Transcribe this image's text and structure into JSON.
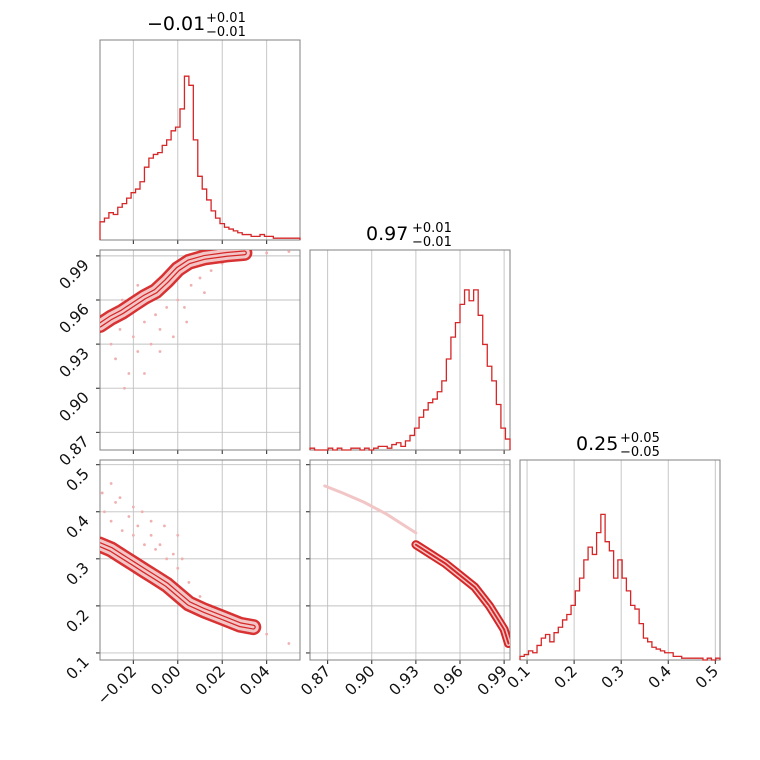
{
  "colors": {
    "accent": "#d62728",
    "fill": "#f6c4c4",
    "scatter": "#f0b0b0",
    "grid": "#c0c0c0",
    "frame": "#808080"
  },
  "chart_data": {
    "type": "corner",
    "params": [
      {
        "median": "−0.01",
        "plus": "+0.01",
        "minus": "−0.01",
        "range": [
          -0.035,
          0.055
        ],
        "ticks": [
          -0.02,
          0.0,
          0.02,
          0.04
        ],
        "tick_labels": [
          "−0.02",
          "0.00",
          "0.02",
          "0.04"
        ]
      },
      {
        "median": "0.97",
        "plus": "+0.01",
        "minus": "−0.01",
        "range": [
          0.858,
          0.994
        ],
        "ticks": [
          0.87,
          0.9,
          0.93,
          0.96,
          0.99
        ],
        "tick_labels": [
          "0.87",
          "0.90",
          "0.93",
          "0.96",
          "0.99"
        ]
      },
      {
        "median": "0.25",
        "plus": "+0.05",
        "minus": "−0.05",
        "range": [
          0.085,
          0.51
        ],
        "ticks": [
          0.1,
          0.2,
          0.3,
          0.4,
          0.5
        ],
        "tick_labels": [
          "0.1",
          "0.2",
          "0.3",
          "0.4",
          "0.5"
        ]
      }
    ],
    "histograms": [
      {
        "param": 0,
        "counts": [
          0.1,
          0.12,
          0.15,
          0.14,
          0.18,
          0.2,
          0.23,
          0.26,
          0.28,
          0.32,
          0.4,
          0.45,
          0.47,
          0.48,
          0.52,
          0.55,
          0.6,
          0.62,
          0.72,
          0.9,
          0.85,
          0.55,
          0.35,
          0.28,
          0.22,
          0.16,
          0.12,
          0.09,
          0.07,
          0.06,
          0.05,
          0.04,
          0.03,
          0.03,
          0.02,
          0.02,
          0.03,
          0.02,
          0.02,
          0.01,
          0.01,
          0.01,
          0.01,
          0.01,
          0.01
        ]
      },
      {
        "param": 1,
        "counts": [
          0.01,
          0.0,
          0.0,
          0.0,
          0.01,
          0.0,
          0.01,
          0.0,
          0.0,
          0.01,
          0.01,
          0.0,
          0.01,
          0.0,
          0.01,
          0.02,
          0.02,
          0.01,
          0.03,
          0.04,
          0.02,
          0.05,
          0.08,
          0.12,
          0.18,
          0.22,
          0.26,
          0.28,
          0.32,
          0.38,
          0.5,
          0.62,
          0.7,
          0.8,
          0.88,
          0.82,
          0.88,
          0.74,
          0.58,
          0.46,
          0.38,
          0.25,
          0.12,
          0.06
        ]
      },
      {
        "param": 2,
        "counts": [
          0.02,
          0.03,
          0.05,
          0.04,
          0.08,
          0.12,
          0.14,
          0.1,
          0.15,
          0.18,
          0.22,
          0.25,
          0.3,
          0.38,
          0.45,
          0.55,
          0.62,
          0.58,
          0.7,
          0.8,
          0.65,
          0.6,
          0.45,
          0.55,
          0.45,
          0.38,
          0.3,
          0.28,
          0.2,
          0.12,
          0.1,
          0.07,
          0.06,
          0.05,
          0.04,
          0.04,
          0.02,
          0.02,
          0.01,
          0.01,
          0.01,
          0.01,
          0.01,
          0.0,
          0.01,
          0.0,
          0.01
        ]
      }
    ],
    "contours": [
      {
        "x_param": 0,
        "y_param": 1,
        "ridge": [
          [
            -0.035,
            0.943
          ],
          [
            -0.03,
            0.948
          ],
          [
            -0.025,
            0.952
          ],
          [
            -0.02,
            0.957
          ],
          [
            -0.015,
            0.962
          ],
          [
            -0.01,
            0.966
          ],
          [
            -0.005,
            0.973
          ],
          [
            0.0,
            0.981
          ],
          [
            0.005,
            0.986
          ],
          [
            0.012,
            0.989
          ],
          [
            0.022,
            0.991
          ],
          [
            0.03,
            0.992
          ]
        ],
        "scatter": [
          [
            -0.03,
            0.93
          ],
          [
            -0.028,
            0.92
          ],
          [
            -0.026,
            0.94
          ],
          [
            -0.022,
            0.91
          ],
          [
            -0.02,
            0.935
          ],
          [
            -0.018,
            0.925
          ],
          [
            -0.015,
            0.945
          ],
          [
            -0.012,
            0.93
          ],
          [
            -0.01,
            0.95
          ],
          [
            -0.008,
            0.94
          ],
          [
            -0.005,
            0.955
          ],
          [
            -0.002,
            0.935
          ],
          [
            0.0,
            0.96
          ],
          [
            0.003,
            0.955
          ],
          [
            0.006,
            0.97
          ],
          [
            0.01,
            0.975
          ],
          [
            0.015,
            0.98
          ],
          [
            0.02,
            0.985
          ],
          [
            0.03,
            0.99
          ],
          [
            0.04,
            0.992
          ],
          [
            0.05,
            0.993
          ],
          [
            -0.032,
            0.95
          ],
          [
            -0.025,
            0.96
          ],
          [
            -0.018,
            0.97
          ],
          [
            -0.008,
            0.925
          ],
          [
            -0.015,
            0.91
          ],
          [
            -0.024,
            0.9
          ],
          [
            0.004,
            0.945
          ],
          [
            0.012,
            0.965
          ]
        ]
      },
      {
        "x_param": 0,
        "y_param": 2,
        "ridge": [
          [
            -0.035,
            0.33
          ],
          [
            -0.03,
            0.32
          ],
          [
            -0.025,
            0.305
          ],
          [
            -0.02,
            0.29
          ],
          [
            -0.015,
            0.275
          ],
          [
            -0.01,
            0.26
          ],
          [
            -0.005,
            0.245
          ],
          [
            0.0,
            0.225
          ],
          [
            0.005,
            0.205
          ],
          [
            0.012,
            0.19
          ],
          [
            0.02,
            0.175
          ],
          [
            0.028,
            0.16
          ],
          [
            0.034,
            0.155
          ]
        ],
        "scatter": [
          [
            -0.033,
            0.4
          ],
          [
            -0.03,
            0.38
          ],
          [
            -0.028,
            0.42
          ],
          [
            -0.025,
            0.36
          ],
          [
            -0.022,
            0.39
          ],
          [
            -0.02,
            0.35
          ],
          [
            -0.018,
            0.37
          ],
          [
            -0.015,
            0.33
          ],
          [
            -0.012,
            0.35
          ],
          [
            -0.01,
            0.32
          ],
          [
            -0.008,
            0.33
          ],
          [
            -0.005,
            0.3
          ],
          [
            -0.002,
            0.31
          ],
          [
            0.0,
            0.28
          ],
          [
            0.002,
            0.3
          ],
          [
            0.005,
            0.25
          ],
          [
            0.01,
            0.22
          ],
          [
            0.015,
            0.2
          ],
          [
            0.02,
            0.18
          ],
          [
            0.03,
            0.16
          ],
          [
            0.04,
            0.14
          ],
          [
            0.05,
            0.12
          ],
          [
            -0.034,
            0.44
          ],
          [
            -0.03,
            0.46
          ],
          [
            -0.026,
            0.43
          ],
          [
            -0.02,
            0.41
          ],
          [
            -0.016,
            0.4
          ],
          [
            -0.012,
            0.38
          ],
          [
            -0.006,
            0.37
          ],
          [
            0.0,
            0.35
          ]
        ]
      },
      {
        "x_param": 1,
        "y_param": 2,
        "ridge": [
          [
            0.93,
            0.33
          ],
          [
            0.94,
            0.31
          ],
          [
            0.95,
            0.29
          ],
          [
            0.96,
            0.265
          ],
          [
            0.97,
            0.24
          ],
          [
            0.975,
            0.22
          ],
          [
            0.98,
            0.2
          ],
          [
            0.985,
            0.175
          ],
          [
            0.99,
            0.15
          ],
          [
            0.993,
            0.12
          ]
        ],
        "faint": [
          [
            0.868,
            0.455
          ],
          [
            0.88,
            0.44
          ],
          [
            0.895,
            0.42
          ],
          [
            0.91,
            0.395
          ],
          [
            0.92,
            0.375
          ],
          [
            0.93,
            0.355
          ]
        ]
      }
    ]
  }
}
